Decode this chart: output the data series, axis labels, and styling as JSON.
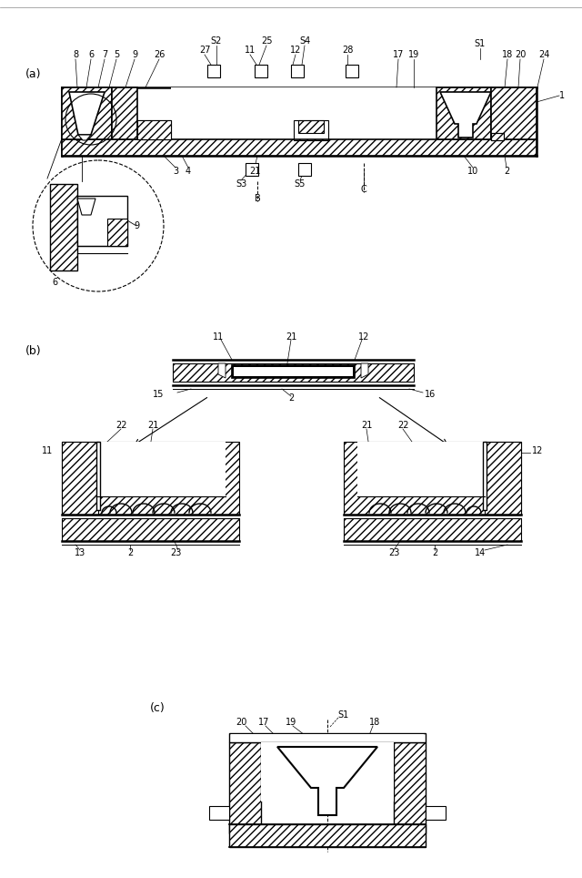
{
  "bg_color": "#ffffff",
  "line_color": "#000000",
  "fig_width": 6.4,
  "fig_height": 9.64,
  "panel_a_label": "(a)",
  "panel_b_label": "(b)",
  "panel_c_label": "(c)"
}
